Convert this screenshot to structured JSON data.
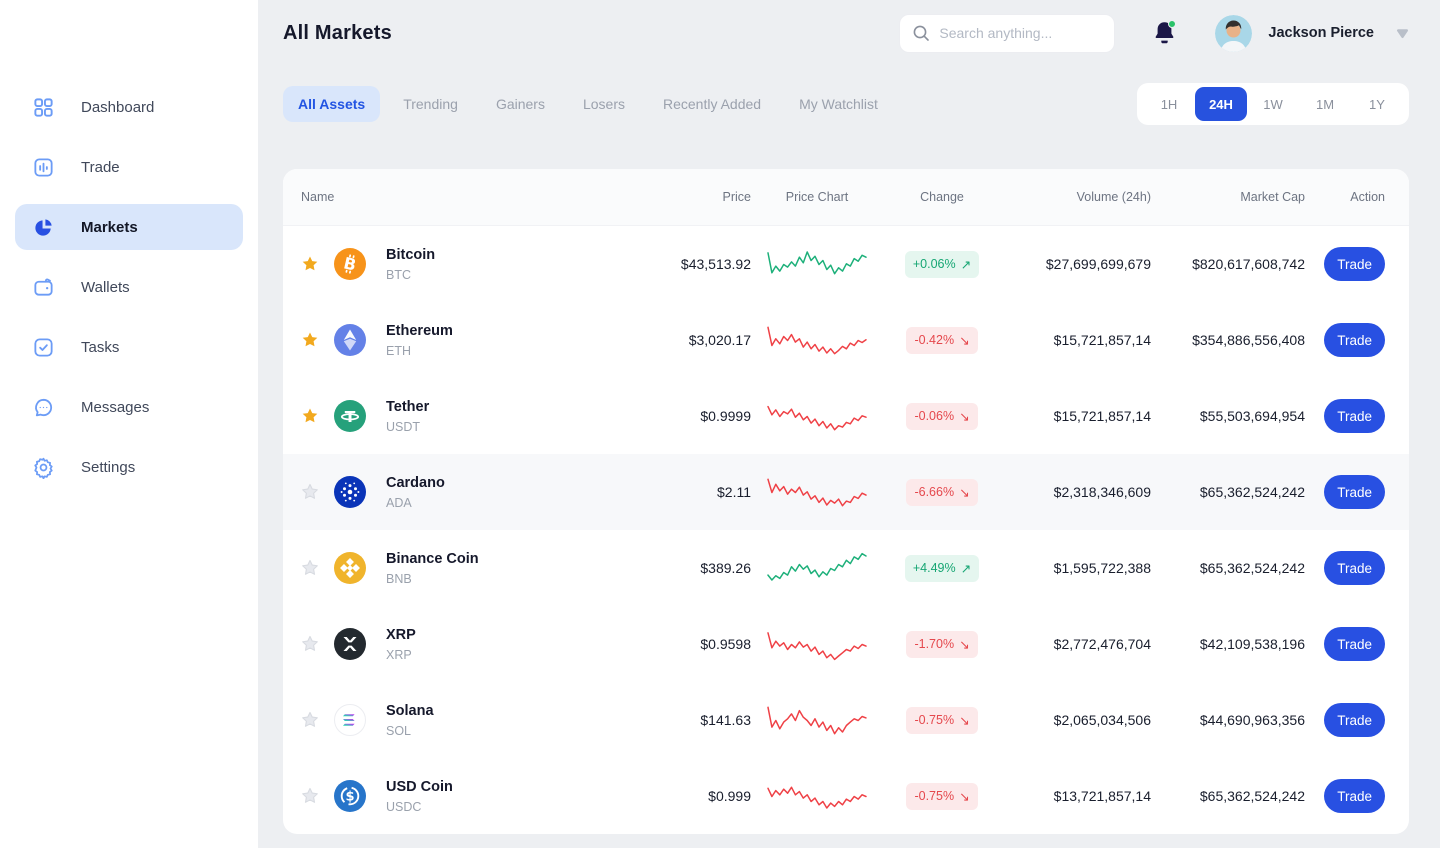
{
  "header": {
    "title": "All Markets",
    "search_placeholder": "Search anything...",
    "user_name": "Jackson Pierce",
    "notification_dot": true
  },
  "sidebar": {
    "items": [
      {
        "label": "Dashboard",
        "icon": "dashboard",
        "active": false
      },
      {
        "label": "Trade",
        "icon": "trade",
        "active": false
      },
      {
        "label": "Markets",
        "icon": "markets",
        "active": true
      },
      {
        "label": "Wallets",
        "icon": "wallets",
        "active": false
      },
      {
        "label": "Tasks",
        "icon": "tasks",
        "active": false
      },
      {
        "label": "Messages",
        "icon": "messages",
        "active": false
      },
      {
        "label": "Settings",
        "icon": "settings",
        "active": false
      }
    ]
  },
  "tabs": [
    {
      "label": "All Assets",
      "active": true
    },
    {
      "label": "Trending",
      "active": false
    },
    {
      "label": "Gainers",
      "active": false
    },
    {
      "label": "Losers",
      "active": false
    },
    {
      "label": "Recently Added",
      "active": false
    },
    {
      "label": "My Watchlist",
      "active": false
    }
  ],
  "timeframes": [
    {
      "label": "1H",
      "active": false
    },
    {
      "label": "24H",
      "active": true
    },
    {
      "label": "1W",
      "active": false
    },
    {
      "label": "1M",
      "active": false
    },
    {
      "label": "1Y",
      "active": false
    }
  ],
  "table": {
    "columns": [
      "Name",
      "Price",
      "Price Chart",
      "Change",
      "Volume (24h)",
      "Market Cap",
      "Action"
    ],
    "action_label": "Trade",
    "rows": [
      {
        "name": "Bitcoin",
        "symbol": "BTC",
        "icon": "btc",
        "starred": true,
        "price": "$43,513.92",
        "change": "+0.06%",
        "direction": "up",
        "volume": "$27,699,699,679",
        "market_cap": "$820,617,608,742",
        "highlighted": false,
        "spark": [
          0.85,
          0.25,
          0.45,
          0.3,
          0.5,
          0.42,
          0.58,
          0.45,
          0.72,
          0.55,
          0.88,
          0.62,
          0.75,
          0.5,
          0.62,
          0.35,
          0.48,
          0.22,
          0.4,
          0.3,
          0.52,
          0.45,
          0.68,
          0.6,
          0.78,
          0.72
        ]
      },
      {
        "name": "Ethereum",
        "symbol": "ETH",
        "icon": "eth",
        "starred": true,
        "price": "$3,020.17",
        "change": "-0.42%",
        "direction": "down",
        "volume": "$15,721,857,14",
        "market_cap": "$354,886,556,408",
        "highlighted": false,
        "spark": [
          0.9,
          0.35,
          0.55,
          0.4,
          0.62,
          0.5,
          0.68,
          0.45,
          0.55,
          0.3,
          0.45,
          0.25,
          0.38,
          0.18,
          0.3,
          0.12,
          0.25,
          0.1,
          0.2,
          0.32,
          0.25,
          0.42,
          0.35,
          0.5,
          0.44,
          0.52
        ]
      },
      {
        "name": "Tether",
        "symbol": "USDT",
        "icon": "usdt",
        "starred": true,
        "price": "$0.9999",
        "change": "-0.06%",
        "direction": "down",
        "volume": "$15,721,857,14",
        "market_cap": "$55,503,694,954",
        "highlighted": false,
        "spark": [
          0.8,
          0.55,
          0.7,
          0.5,
          0.65,
          0.58,
          0.72,
          0.48,
          0.6,
          0.4,
          0.5,
          0.3,
          0.42,
          0.22,
          0.35,
          0.15,
          0.28,
          0.1,
          0.22,
          0.18,
          0.32,
          0.28,
          0.45,
          0.38,
          0.52,
          0.48
        ]
      },
      {
        "name": "Cardano",
        "symbol": "ADA",
        "icon": "ada",
        "starred": false,
        "price": "$2.11",
        "change": "-6.66%",
        "direction": "down",
        "volume": "$2,318,346,609",
        "market_cap": "$65,362,524,242",
        "highlighted": true,
        "spark": [
          0.9,
          0.5,
          0.75,
          0.55,
          0.68,
          0.45,
          0.6,
          0.5,
          0.66,
          0.42,
          0.52,
          0.3,
          0.4,
          0.2,
          0.33,
          0.12,
          0.26,
          0.18,
          0.3,
          0.1,
          0.24,
          0.2,
          0.38,
          0.32,
          0.48,
          0.42
        ]
      },
      {
        "name": "Binance Coin",
        "symbol": "BNB",
        "icon": "bnb",
        "starred": false,
        "price": "$389.26",
        "change": "+4.49%",
        "direction": "up",
        "volume": "$1,595,722,388",
        "market_cap": "$65,362,524,242",
        "highlighted": false,
        "spark": [
          0.3,
          0.15,
          0.28,
          0.2,
          0.38,
          0.3,
          0.55,
          0.42,
          0.62,
          0.48,
          0.58,
          0.35,
          0.45,
          0.25,
          0.4,
          0.3,
          0.5,
          0.44,
          0.62,
          0.55,
          0.75,
          0.65,
          0.85,
          0.78,
          0.95,
          0.88
        ]
      },
      {
        "name": "XRP",
        "symbol": "XRP",
        "icon": "xrp",
        "starred": false,
        "price": "$0.9598",
        "change": "-1.70%",
        "direction": "down",
        "volume": "$2,772,476,704",
        "market_cap": "$42,109,538,196",
        "highlighted": false,
        "spark": [
          0.85,
          0.4,
          0.6,
          0.45,
          0.55,
          0.35,
          0.5,
          0.4,
          0.58,
          0.42,
          0.5,
          0.3,
          0.42,
          0.2,
          0.3,
          0.1,
          0.2,
          0.05,
          0.15,
          0.25,
          0.35,
          0.3,
          0.45,
          0.38,
          0.5,
          0.45
        ]
      },
      {
        "name": "Solana",
        "symbol": "SOL",
        "icon": "sol",
        "starred": false,
        "price": "$141.63",
        "change": "-0.75%",
        "direction": "down",
        "volume": "$2,065,034,506",
        "market_cap": "$44,690,963,356",
        "highlighted": false,
        "spark": [
          0.9,
          0.3,
          0.5,
          0.25,
          0.45,
          0.55,
          0.7,
          0.5,
          0.8,
          0.6,
          0.5,
          0.35,
          0.55,
          0.3,
          0.45,
          0.2,
          0.35,
          0.1,
          0.28,
          0.15,
          0.35,
          0.45,
          0.55,
          0.5,
          0.62,
          0.58
        ]
      },
      {
        "name": "USD Coin",
        "symbol": "USDC",
        "icon": "usdc",
        "starred": false,
        "price": "$0.999",
        "change": "-0.75%",
        "direction": "down",
        "volume": "$13,721,857,14",
        "market_cap": "$65,362,524,242",
        "highlighted": false,
        "spark": [
          0.75,
          0.5,
          0.68,
          0.55,
          0.72,
          0.6,
          0.78,
          0.55,
          0.65,
          0.45,
          0.55,
          0.35,
          0.45,
          0.25,
          0.35,
          0.15,
          0.3,
          0.2,
          0.35,
          0.25,
          0.42,
          0.35,
          0.5,
          0.42,
          0.55,
          0.5
        ]
      }
    ]
  },
  "colors": {
    "accent_blue": "#2850E2",
    "active_pill_bg": "#D9E6FB",
    "positive_text": "#16A673",
    "positive_bg": "#E5F6EF",
    "negative_text": "#E5484D",
    "negative_bg": "#FCE9EA",
    "spark_up": "#1DB07A",
    "spark_down": "#EF4146",
    "star_on": "#F2A91E",
    "star_off": "#E7E9EE",
    "sidebar_icon": "#6C9CF6",
    "coin_btc": "#F7931A",
    "coin_eth": "#6481E7",
    "coin_usdt": "#26A17B",
    "coin_ada": "#0A34B8",
    "coin_bnb": "#F0B42C",
    "coin_xrp": "#23292F",
    "coin_usdc": "#2775CA"
  }
}
